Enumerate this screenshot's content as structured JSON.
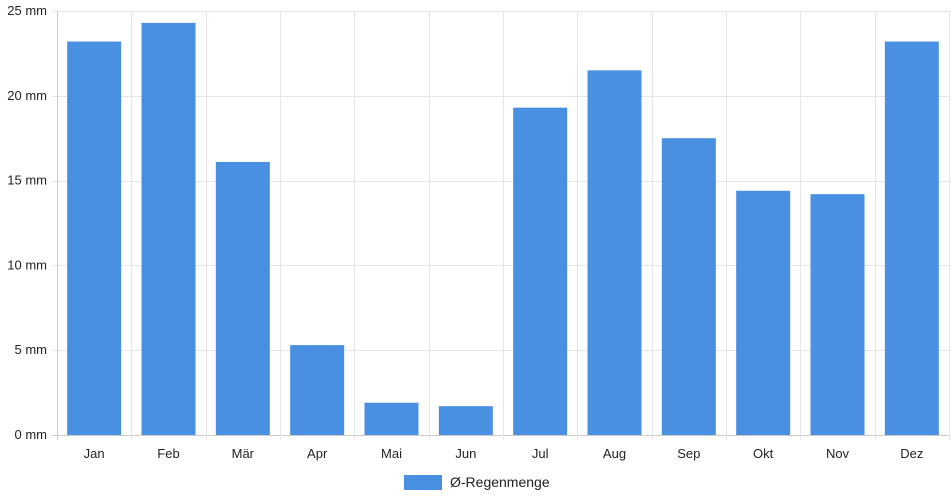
{
  "chart_data": {
    "type": "bar",
    "categories": [
      "Jan",
      "Feb",
      "Mär",
      "Apr",
      "Mai",
      "Jun",
      "Jul",
      "Aug",
      "Sep",
      "Okt",
      "Nov",
      "Dez"
    ],
    "series": [
      {
        "name": "Ø-Regenmenge",
        "values": [
          23.2,
          24.3,
          16.1,
          5.3,
          1.9,
          1.7,
          19.3,
          21.5,
          17.5,
          14.4,
          14.2,
          23.2
        ],
        "color": "#4a90e2"
      }
    ],
    "title": "",
    "xlabel": "",
    "ylabel": "",
    "ylim": [
      0,
      25
    ],
    "yticks": [
      0,
      5,
      10,
      15,
      20,
      25
    ],
    "ytick_unit": "mm",
    "grid": true,
    "legend_position": "bottom-center"
  }
}
